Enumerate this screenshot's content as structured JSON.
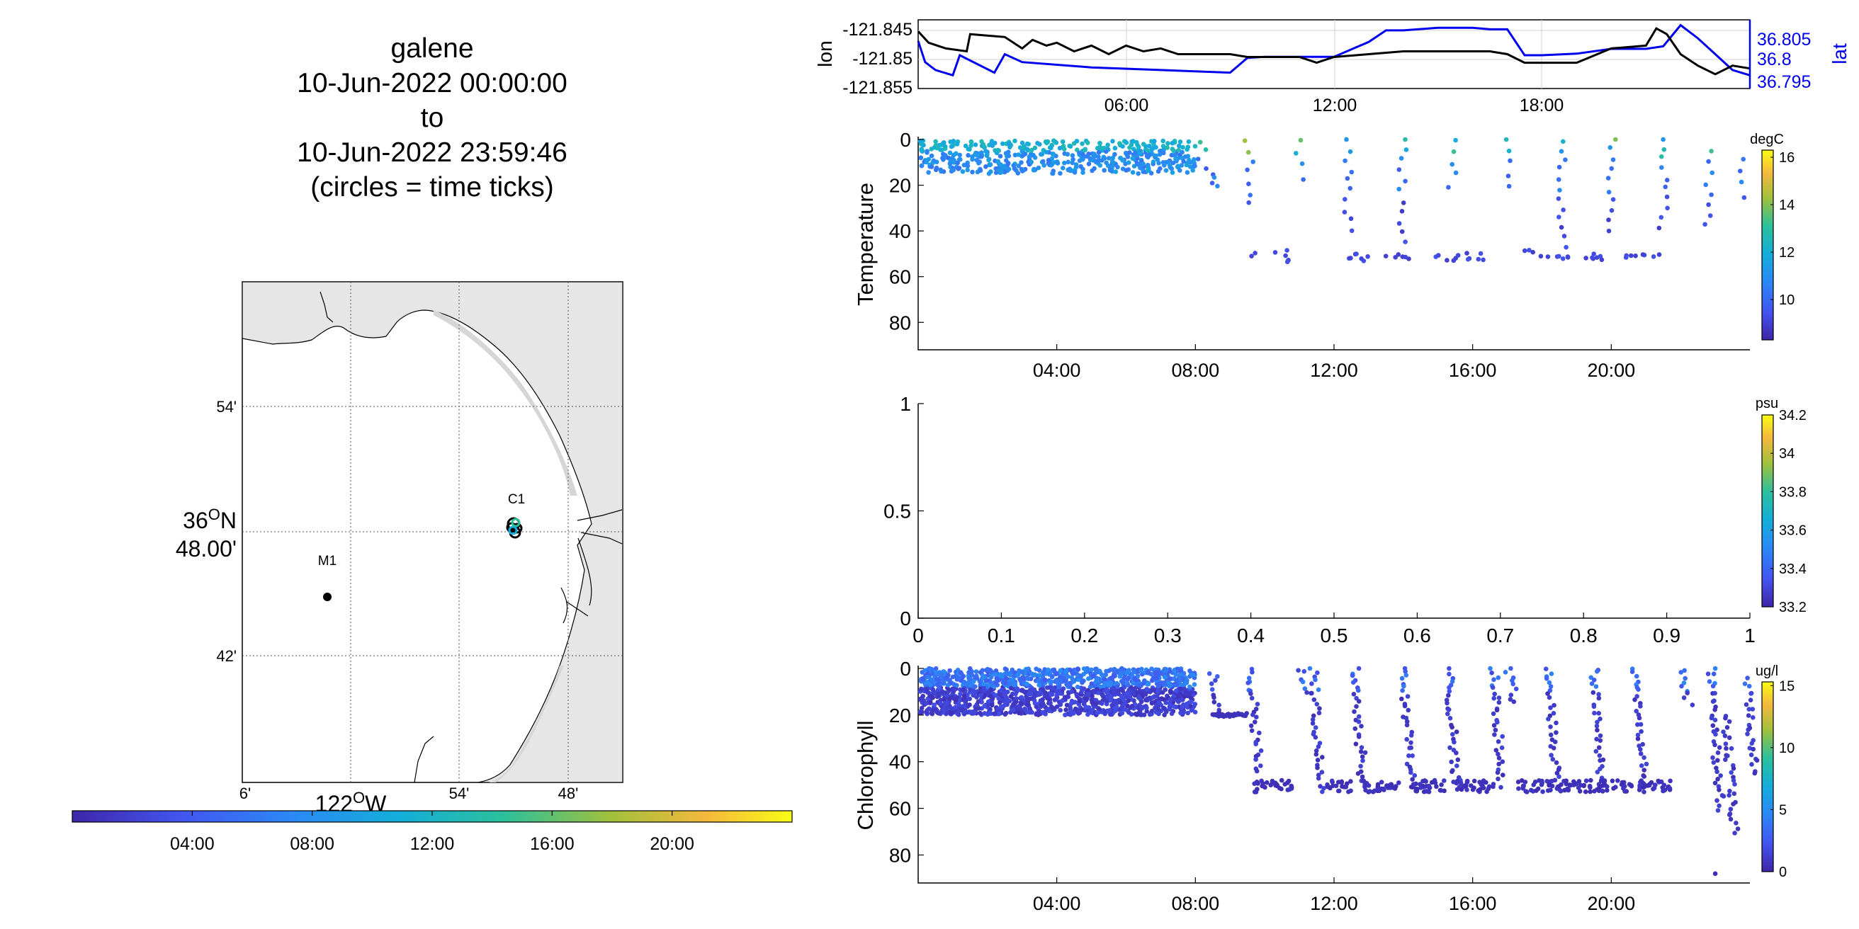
{
  "title": {
    "lines": [
      "galene",
      "10-Jun-2022 00:00:00",
      "to",
      "10-Jun-2022 23:59:46",
      "(circles = time ticks)"
    ]
  },
  "map": {
    "lat_ticks": [
      "54'",
      "36°N 48.00'",
      "42'"
    ],
    "lon_ticks": [
      "6'",
      "54'",
      "48'"
    ],
    "lon_label": "122°W",
    "stations": [
      {
        "name": "M1"
      },
      {
        "name": "C1"
      }
    ],
    "time_colorbar_ticks": [
      "04:00",
      "08:00",
      "12:00",
      "16:00",
      "20:00"
    ]
  },
  "chart_data": [
    {
      "type": "line",
      "panel": "position",
      "ylabel": "lon",
      "ylabel_right": "lat",
      "xticks": [
        "06:00",
        "12:00",
        "18:00"
      ],
      "yticks_left": [
        "-121.845",
        "-121.85",
        "-121.855"
      ],
      "yticks_right": [
        "36.805",
        "36.8",
        "36.795"
      ],
      "ylim_left": [
        -121.855,
        -121.843
      ],
      "ylim_right": [
        36.794,
        36.807
      ],
      "series": [
        {
          "name": "lon",
          "color": "#000000",
          "x": [
            0,
            0.3,
            0.8,
            1.4,
            1.5,
            2.5,
            3.0,
            3.3,
            3.7,
            4.0,
            4.5,
            5.0,
            5.5,
            6.0,
            6.5,
            7.0,
            7.5,
            8.0,
            9.0,
            9.5,
            10.0,
            10.5,
            11.0,
            11.5,
            12.0,
            13.0,
            14.0,
            15.0,
            16.0,
            16.5,
            17.0,
            17.5,
            18.0,
            18.5,
            19.0,
            20.0,
            21.0,
            21.3,
            21.6,
            22.0,
            22.5,
            23.0,
            23.5,
            24.0
          ],
          "y": [
            -121.845,
            -121.847,
            -121.848,
            -121.8485,
            -121.8455,
            -121.846,
            -121.848,
            -121.8465,
            -121.8475,
            -121.847,
            -121.8485,
            -121.8475,
            -121.849,
            -121.8475,
            -121.8485,
            -121.848,
            -121.849,
            -121.849,
            -121.849,
            -121.8495,
            -121.8495,
            -121.8495,
            -121.8495,
            -121.8505,
            -121.8495,
            -121.849,
            -121.8485,
            -121.8485,
            -121.8485,
            -121.8485,
            -121.849,
            -121.8505,
            -121.8505,
            -121.8505,
            -121.8505,
            -121.848,
            -121.8475,
            -121.8445,
            -121.8455,
            -121.849,
            -121.851,
            -121.8525,
            -121.851,
            -121.8515
          ]
        },
        {
          "name": "lat",
          "color": "#0000ee",
          "x": [
            0,
            0.2,
            0.5,
            1.0,
            1.2,
            2.2,
            2.5,
            3.0,
            5.0,
            7.0,
            9.0,
            9.5,
            10.0,
            11.0,
            12.0,
            13.0,
            13.5,
            14.0,
            15.0,
            16.0,
            16.5,
            17.0,
            17.5,
            18.0,
            19.0,
            20.0,
            21.0,
            21.5,
            22.0,
            22.5,
            23.0,
            23.5,
            24.0
          ],
          "y": [
            36.803,
            36.799,
            36.7975,
            36.7965,
            36.8003,
            36.797,
            36.8005,
            36.799,
            36.798,
            36.7975,
            36.797,
            36.7998,
            36.8,
            36.8,
            36.8,
            36.8028,
            36.805,
            36.805,
            36.8055,
            36.8055,
            36.8052,
            36.8052,
            36.8003,
            36.8003,
            36.8006,
            36.8015,
            36.8015,
            36.802,
            36.806,
            36.8035,
            36.8005,
            36.7975,
            36.7965
          ]
        }
      ]
    },
    {
      "type": "scatter",
      "panel": "temperature",
      "ylabel": "Temperature",
      "xticks": [
        "04:00",
        "08:00",
        "12:00",
        "16:00",
        "20:00"
      ],
      "yticks": [
        "0",
        "20",
        "40",
        "60",
        "80"
      ],
      "ylim": [
        92,
        0
      ],
      "colorbar": {
        "label": "degC",
        "range": [
          8.3,
          16.3
        ],
        "ticks": [
          "16",
          "14",
          "12",
          "10"
        ]
      },
      "dense_block": {
        "x_range": [
          0.05,
          8.0
        ],
        "depth_range": [
          0.5,
          15
        ],
        "value_range": [
          10.5,
          12.5
        ]
      },
      "segments": [
        {
          "x": 8.2,
          "depth_top": 1,
          "depth_bottom": 12
        },
        {
          "x": 8.6,
          "depth_top": 16,
          "depth_bottom": 20
        },
        {
          "x": 9.55,
          "depth_top": 0,
          "depth_bottom": 28
        },
        {
          "x": 11.0,
          "depth_top": 0,
          "depth_bottom": 17
        },
        {
          "x": 12.4,
          "depth_top": 0,
          "depth_bottom": 40
        },
        {
          "x": 14.0,
          "depth_top": 0,
          "depth_bottom": 45
        },
        {
          "x": 15.4,
          "depth_top": 0,
          "depth_bottom": 20
        },
        {
          "x": 17.0,
          "depth_top": 0,
          "depth_bottom": 20
        },
        {
          "x": 18.6,
          "depth_top": 0,
          "depth_bottom": 47
        },
        {
          "x": 20.0,
          "depth_top": 0,
          "depth_bottom": 40
        },
        {
          "x": 21.5,
          "depth_top": 0,
          "depth_bottom": 38
        },
        {
          "x": 22.8,
          "depth_top": 5,
          "depth_bottom": 38
        },
        {
          "x": 23.8,
          "depth_top": 8,
          "depth_bottom": 25
        }
      ],
      "deep_clusters": [
        {
          "x_range": [
            9.6,
            10.8
          ],
          "depth_range": [
            48,
            54
          ]
        },
        {
          "x_range": [
            12.1,
            13.1
          ],
          "depth_range": [
            50,
            54
          ]
        },
        {
          "x_range": [
            13.4,
            14.3
          ],
          "depth_range": [
            50,
            53
          ]
        },
        {
          "x_range": [
            14.8,
            15.6
          ],
          "depth_range": [
            50,
            53
          ]
        },
        {
          "x_range": [
            15.8,
            16.6
          ],
          "depth_range": [
            49,
            53
          ]
        },
        {
          "x_range": [
            17.5,
            18.9
          ],
          "depth_range": [
            48,
            53
          ]
        },
        {
          "x_range": [
            18.9,
            19.9
          ],
          "depth_range": [
            50,
            53
          ]
        },
        {
          "x_range": [
            20.3,
            21.5
          ],
          "depth_range": [
            50,
            53
          ]
        }
      ]
    },
    {
      "type": "scatter",
      "panel": "salinity",
      "xticks": [
        "0",
        "0.1",
        "0.2",
        "0.3",
        "0.4",
        "0.5",
        "0.6",
        "0.7",
        "0.8",
        "0.9",
        "1"
      ],
      "yticks": [
        "1",
        "0.5",
        "0"
      ],
      "xlim": [
        0,
        1
      ],
      "ylim": [
        0,
        1
      ],
      "colorbar": {
        "label": "psu",
        "range": [
          33.2,
          34.2
        ],
        "ticks": [
          "34.2",
          "34",
          "33.8",
          "33.6",
          "33.4",
          "33.2"
        ]
      }
    },
    {
      "type": "scatter",
      "panel": "chlorophyll",
      "ylabel": "Chlorophyll",
      "xticks": [
        "04:00",
        "08:00",
        "12:00",
        "16:00",
        "20:00"
      ],
      "yticks": [
        "0",
        "20",
        "40",
        "60",
        "80"
      ],
      "ylim": [
        92,
        0
      ],
      "colorbar": {
        "label": "ug/l",
        "range": [
          0,
          15.3
        ],
        "ticks": [
          "15",
          "10",
          "5",
          "0"
        ]
      },
      "dense_block": {
        "x_range": [
          0.05,
          8.0
        ],
        "depth_range": [
          0,
          20
        ],
        "value_range": [
          0,
          4.5
        ]
      },
      "shelf": {
        "x_range": [
          8.5,
          9.5
        ],
        "depth": 20
      },
      "segments": [
        {
          "x": 8.5,
          "depth_top": 2,
          "depth_bottom": 20
        },
        {
          "x": 9.6,
          "depth_top": 0,
          "depth_bottom": 45
        },
        {
          "x": 11.0,
          "depth_top": 0,
          "depth_bottom": 10
        },
        {
          "x": 11.4,
          "depth_top": 0,
          "depth_bottom": 53
        },
        {
          "x": 12.6,
          "depth_top": 0,
          "depth_bottom": 50
        },
        {
          "x": 14.0,
          "depth_top": 0,
          "depth_bottom": 50
        },
        {
          "x": 15.3,
          "depth_top": 0,
          "depth_bottom": 50
        },
        {
          "x": 16.6,
          "depth_top": 0,
          "depth_bottom": 50
        },
        {
          "x": 17.0,
          "depth_top": 0,
          "depth_bottom": 15
        },
        {
          "x": 18.2,
          "depth_top": 0,
          "depth_bottom": 50
        },
        {
          "x": 19.5,
          "depth_top": 0,
          "depth_bottom": 50
        },
        {
          "x": 20.7,
          "depth_top": 0,
          "depth_bottom": 50
        },
        {
          "x": 22.0,
          "depth_top": 0,
          "depth_bottom": 15
        },
        {
          "x": 22.9,
          "depth_top": 0,
          "depth_bottom": 60
        },
        {
          "x": 23.3,
          "depth_top": 20,
          "depth_bottom": 70
        },
        {
          "x": 23.9,
          "depth_top": 5,
          "depth_bottom": 45
        }
      ],
      "deep_clusters": [
        {
          "x_range": [
            9.7,
            10.8
          ],
          "depth_range": [
            48,
            53
          ]
        },
        {
          "x_range": [
            11.8,
            12.5
          ],
          "depth_range": [
            48,
            53
          ]
        },
        {
          "x_range": [
            12.8,
            13.9
          ],
          "depth_range": [
            48,
            53
          ]
        },
        {
          "x_range": [
            14.1,
            15.2
          ],
          "depth_range": [
            48,
            53
          ]
        },
        {
          "x_range": [
            15.4,
            16.6
          ],
          "depth_range": [
            48,
            53
          ]
        },
        {
          "x_range": [
            17.3,
            18.3
          ],
          "depth_range": [
            48,
            53
          ]
        },
        {
          "x_range": [
            18.4,
            19.6
          ],
          "depth_range": [
            48,
            53
          ]
        },
        {
          "x_range": [
            19.6,
            20.6
          ],
          "depth_range": [
            48,
            53
          ]
        },
        {
          "x_range": [
            20.8,
            21.8
          ],
          "depth_range": [
            48,
            53
          ]
        }
      ],
      "outliers": [
        {
          "x": 23.0,
          "depth": 88
        }
      ]
    }
  ]
}
